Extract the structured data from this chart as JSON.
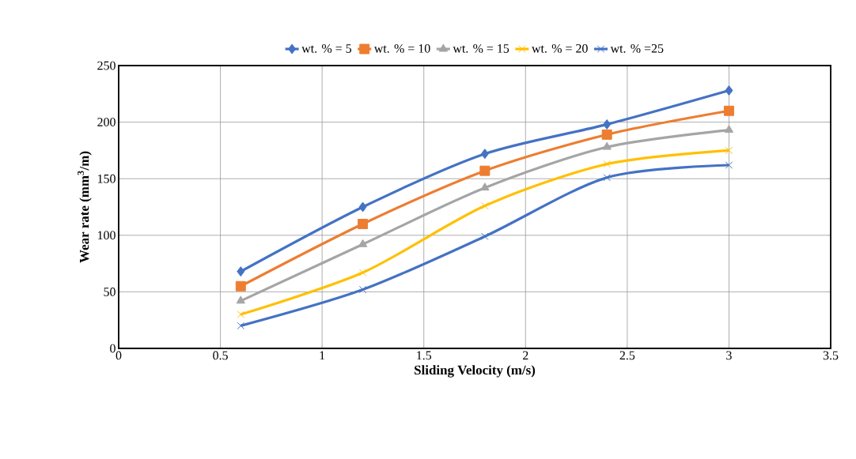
{
  "chart_data": {
    "type": "line",
    "xlabel": "Sliding Velocity  (m/s)",
    "ylabel": "Wear rate  (mm$^{3}$/m)",
    "x": [
      0.6,
      1.2,
      1.8,
      2.4,
      3.0
    ],
    "series": [
      {
        "name": "wt. % = 5",
        "color": "#4472c4",
        "marker": "diamond",
        "values": [
          68,
          125,
          172,
          198,
          228
        ]
      },
      {
        "name": "wt. % = 10",
        "color": "#ed7d31",
        "marker": "square",
        "values": [
          55,
          110,
          157,
          189,
          210
        ]
      },
      {
        "name": "wt. % = 15",
        "color": "#a5a5a5",
        "marker": "triangle",
        "values": [
          42,
          92,
          142,
          178,
          193
        ]
      },
      {
        "name": "wt. % = 20",
        "color": "#ffc000",
        "marker": "cross",
        "values": [
          30,
          67,
          126,
          163,
          175
        ]
      },
      {
        "name": "wt. % =25",
        "color": "#4472c4",
        "marker": "cross",
        "values": [
          20,
          52,
          99,
          151,
          162
        ]
      }
    ],
    "xlim": [
      0,
      3.5
    ],
    "xticks": [
      0,
      0.5,
      1,
      1.5,
      2,
      2.5,
      3,
      3.5
    ],
    "ylim": [
      0,
      250
    ],
    "yticks": [
      0,
      50,
      100,
      150,
      200,
      250
    ],
    "grid": true,
    "legend": "top",
    "line_style": "solid"
  }
}
